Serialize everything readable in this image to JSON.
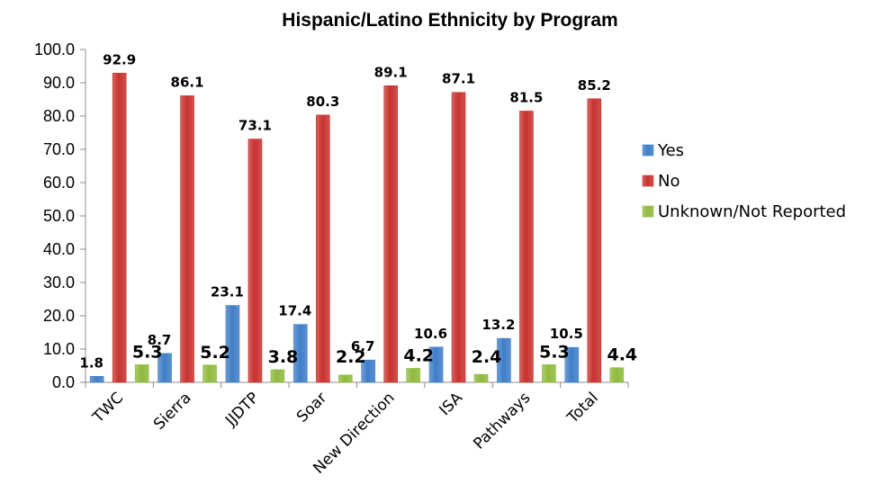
{
  "chart_data": {
    "type": "bar",
    "title": "Hispanic/Latino Ethnicity by Program",
    "xlabel": "",
    "ylabel": "",
    "ylim": [
      0,
      100
    ],
    "yticks": [
      "0.0",
      "10.0",
      "20.0",
      "30.0",
      "40.0",
      "50.0",
      "60.0",
      "70.0",
      "80.0",
      "90.0",
      "100.0"
    ],
    "grid": false,
    "legend_position": "right",
    "categories": [
      "TWC",
      "Sierra",
      "JJDTP",
      "Soar",
      "New Direction",
      "ISA",
      "Pathways",
      "Total"
    ],
    "series": [
      {
        "name": "Yes",
        "color": "#3f7ec7",
        "values": [
          1.8,
          8.7,
          23.1,
          17.4,
          6.7,
          10.6,
          13.2,
          10.5
        ],
        "labels": [
          "1.8",
          "8.7",
          "23.1",
          "17.4",
          "6.7",
          "10.6",
          "13.2",
          "10.5"
        ]
      },
      {
        "name": "No",
        "color": "#c8322e",
        "values": [
          92.9,
          86.1,
          73.1,
          80.3,
          89.1,
          87.1,
          81.5,
          85.2
        ],
        "labels": [
          "92.9",
          "86.1",
          "73.1",
          "80.3",
          "89.1",
          "87.1",
          "81.5",
          "85.2"
        ]
      },
      {
        "name": "Unknown/Not Reported",
        "color": "#8fba3c",
        "values": [
          5.3,
          5.2,
          3.8,
          2.2,
          4.2,
          2.4,
          5.3,
          4.4
        ],
        "labels": [
          "5.3",
          "5.2",
          "3.8",
          "2.2",
          "4.2",
          "2.4",
          "5.3",
          "4.4"
        ]
      }
    ]
  }
}
